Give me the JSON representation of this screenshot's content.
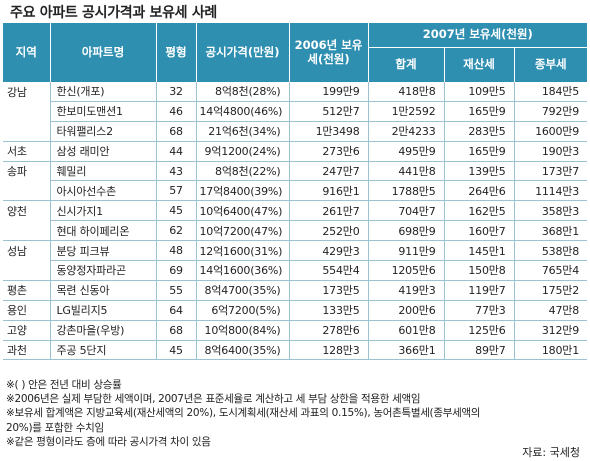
{
  "title": "주요 아파트 공시가격과 보유세 사례",
  "headers": {
    "region": "지역",
    "apartment": "아파트명",
    "area": "평형",
    "price": "공시가격(만원)",
    "tax2006": "2006년 보유세(천원)",
    "tax2007": "2007년 보유세(천원)",
    "total": "합계",
    "property": "재산세",
    "comprehensive": "종부세"
  },
  "rows": [
    {
      "region": "강남",
      "apt": "한신(개포)",
      "area": "32",
      "price": "8억8천(28%)",
      "t2006": "199만9",
      "total": "418만8",
      "prop": "109만5",
      "comp": "184만5",
      "nosep": true
    },
    {
      "region": "",
      "apt": "한보미도맨션1",
      "area": "46",
      "price": "14억4800(46%)",
      "t2006": "512만7",
      "total": "1만2592",
      "prop": "165만9",
      "comp": "792만9",
      "nosep": true
    },
    {
      "region": "",
      "apt": "타워팰리스2",
      "area": "68",
      "price": "21억6천(34%)",
      "t2006": "1만3498",
      "total": "2만4233",
      "prop": "283만5",
      "comp": "1600만9"
    },
    {
      "region": "서초",
      "apt": "삼성 래미안",
      "area": "44",
      "price": "9억1200(24%)",
      "t2006": "273만6",
      "total": "495만9",
      "prop": "165만9",
      "comp": "190만3",
      "first": true
    },
    {
      "region": "송파",
      "apt": "훼밀리",
      "area": "43",
      "price": "8억8천(22%)",
      "t2006": "247만7",
      "total": "441만8",
      "prop": "139만5",
      "comp": "173만7",
      "nosep": true,
      "first": true
    },
    {
      "region": "",
      "apt": "아시아선수촌",
      "area": "57",
      "price": "17억8400(39%)",
      "t2006": "916만1",
      "total": "1788만5",
      "prop": "264만6",
      "comp": "1114만3"
    },
    {
      "region": "양천",
      "apt": "신시가지1",
      "area": "45",
      "price": "10억6400(47%)",
      "t2006": "261만7",
      "total": "704만7",
      "prop": "162만5",
      "comp": "358만3",
      "nosep": true,
      "first": true
    },
    {
      "region": "",
      "apt": "현대 하이페리온",
      "area": "62",
      "price": "10억7200(47%)",
      "t2006": "252만0",
      "total": "698만9",
      "prop": "160만7",
      "comp": "368만1"
    },
    {
      "region": "성남",
      "apt": "분당 피크뷰",
      "area": "48",
      "price": "12억1600(31%)",
      "t2006": "429만3",
      "total": "911만9",
      "prop": "145만1",
      "comp": "538만8",
      "nosep": true,
      "first": true
    },
    {
      "region": "",
      "apt": "동양정자파라곤",
      "area": "69",
      "price": "14억1600(36%)",
      "t2006": "554만4",
      "total": "1205만6",
      "prop": "150만8",
      "comp": "765만4"
    },
    {
      "region": "평촌",
      "apt": "목련 신동아",
      "area": "55",
      "price": "8억4700(35%)",
      "t2006": "173만5",
      "total": "419만3",
      "prop": "119만7",
      "comp": "175만2",
      "first": true
    },
    {
      "region": "용인",
      "apt": "LG빌리지5",
      "area": "64",
      "price": "6억7200(5%)",
      "t2006": "133만5",
      "total": "200만6",
      "prop": "77만3",
      "comp": "47만8",
      "first": true
    },
    {
      "region": "고양",
      "apt": "강촌마을(우방)",
      "area": "68",
      "price": "10억800(84%)",
      "t2006": "278만6",
      "total": "601만8",
      "prop": "125만6",
      "comp": "312만9",
      "first": true
    },
    {
      "region": "과천",
      "apt": "주공 5단지",
      "area": "45",
      "price": "8억6400(35%)",
      "t2006": "128만3",
      "total": "366만1",
      "prop": "89만7",
      "comp": "180만1",
      "first": true
    }
  ],
  "notes": [
    "※( ) 안은 전년 대비 상승률",
    "※2006년은 실제 부담한 세액이며, 2007년은 표준세율로 계산하고 세 부담 상한을 적용한 세액임",
    "※보유세 합계액은 지방교육세(재산세액의 20%), 도시계획세(재산세 과표의 0.15%), 농어촌특별세(종부세액의",
    "  20%)를 포함한 수치임",
    "※같은 평형이라도 층에 따라 공시가격 차이 있음"
  ],
  "source": "자료: 국세청"
}
